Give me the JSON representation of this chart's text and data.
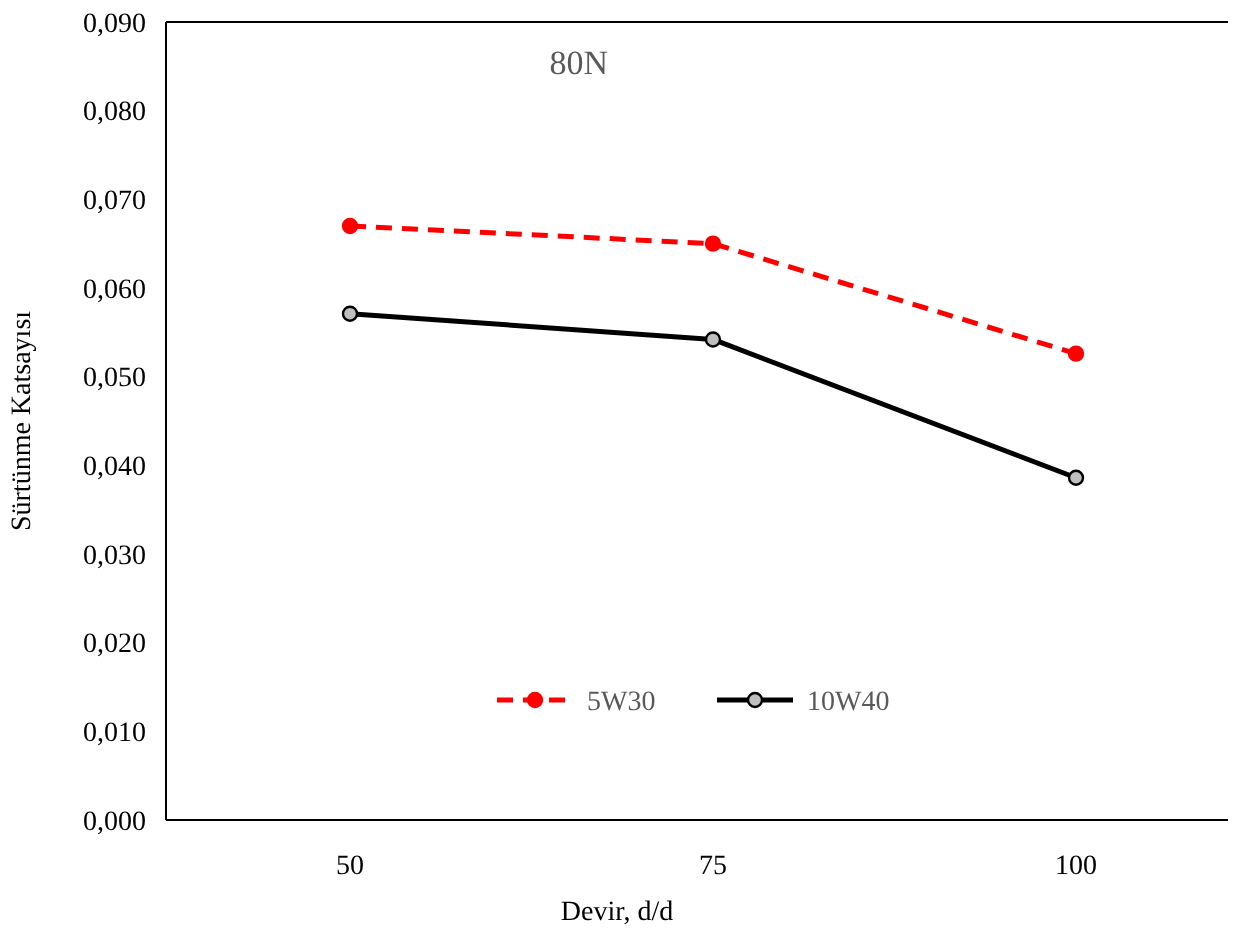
{
  "chart_data": {
    "type": "line",
    "title": "80N",
    "xlabel": "Devir, d/d",
    "ylabel": "Sürtünme Katsayısı",
    "categories": [
      "50",
      "75",
      "100"
    ],
    "series": [
      {
        "name": "5W30",
        "color": "#ff0000",
        "values": [
          0.067,
          0.065,
          0.0526
        ],
        "line_style": "dashed"
      },
      {
        "name": "10W40",
        "color": "#000000",
        "values": [
          0.0571,
          0.0542,
          0.0386
        ],
        "line_style": "solid"
      }
    ],
    "ylim": [
      0,
      0.09
    ],
    "yticks": [
      {
        "value": 0,
        "label": "0,000"
      },
      {
        "value": 0.01,
        "label": "0,010"
      },
      {
        "value": 0.02,
        "label": "0,020"
      },
      {
        "value": 0.03,
        "label": "0,030"
      },
      {
        "value": 0.04,
        "label": "0,040"
      },
      {
        "value": 0.05,
        "label": "0,050"
      },
      {
        "value": 0.06,
        "label": "0,060"
      },
      {
        "value": 0.07,
        "label": "0,070"
      },
      {
        "value": 0.08,
        "label": "0,080"
      },
      {
        "value": 0.09,
        "label": "0,090"
      }
    ],
    "grid": false,
    "legend": "bottom",
    "marker": "circle"
  }
}
